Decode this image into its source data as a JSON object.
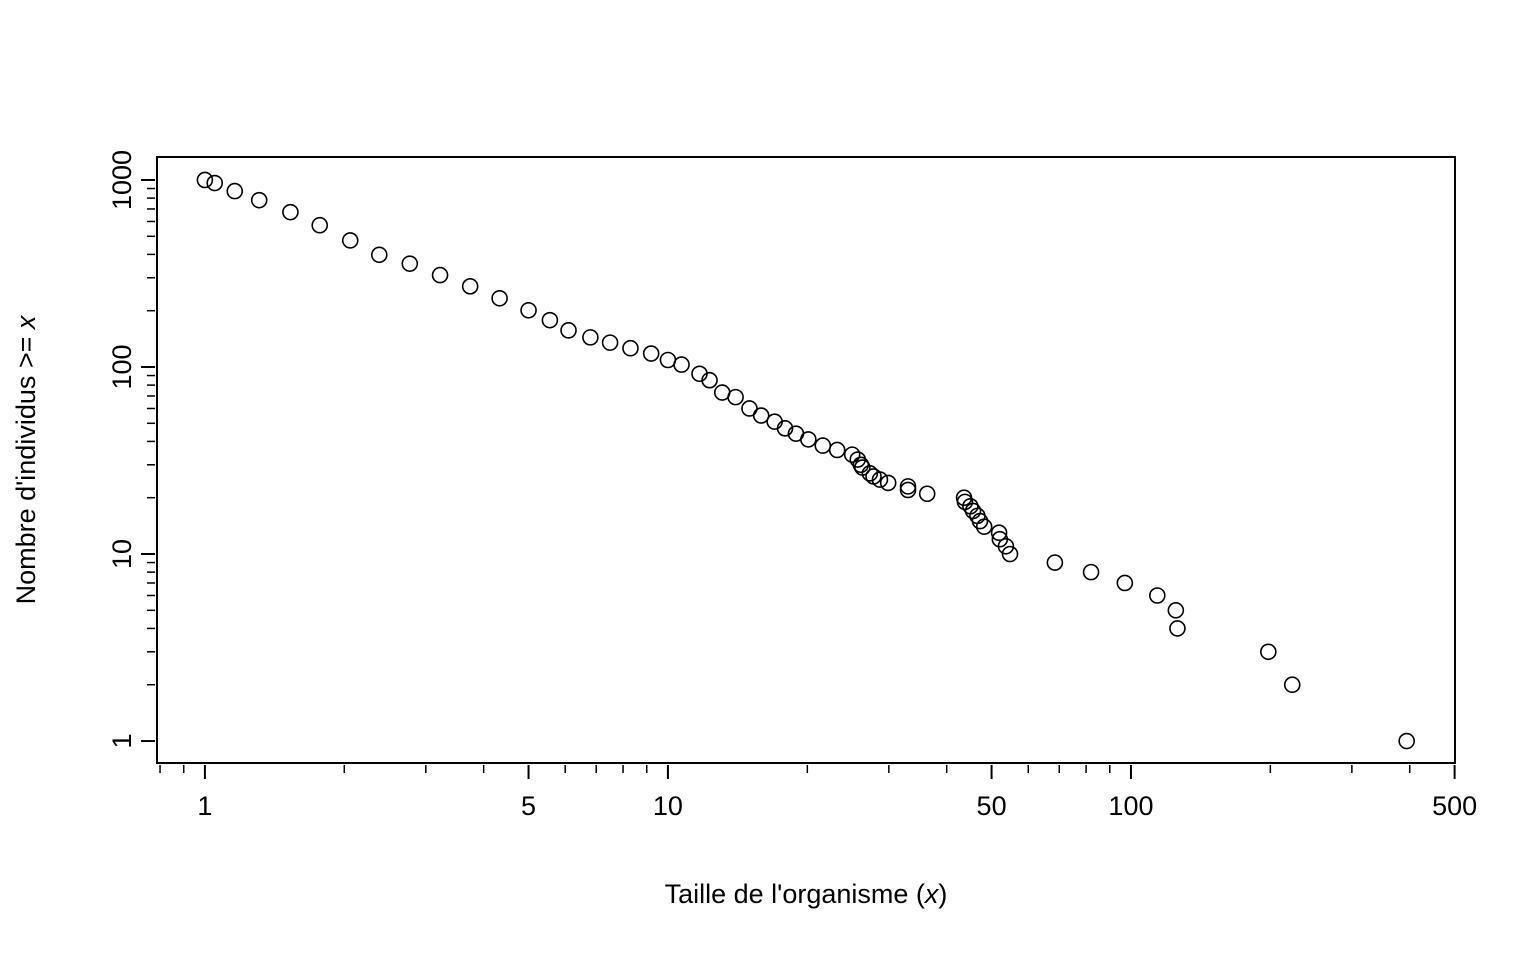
{
  "chart_data": {
    "type": "scatter",
    "xlabel": [
      "Taille de l'organisme (",
      "x",
      ")"
    ],
    "ylabel": [
      "Nombre d'individus >= ",
      "x"
    ],
    "log_x": true,
    "log_y": true,
    "color": "#000000",
    "xlim": [
      0.788,
      501
    ],
    "ylim": [
      0.763,
      1327
    ],
    "xticks": [
      1,
      5,
      10,
      50,
      100,
      500
    ],
    "xminor_ticks": [
      0.8,
      0.9,
      2,
      3,
      4,
      6,
      7,
      8,
      9,
      20,
      30,
      40,
      60,
      70,
      80,
      90,
      200,
      300,
      400
    ],
    "yticks": [
      1,
      10,
      100,
      1000
    ],
    "yminor_ticks": [
      2,
      3,
      4,
      5,
      6,
      7,
      8,
      9,
      20,
      30,
      40,
      50,
      60,
      70,
      80,
      90,
      200,
      300,
      400,
      500,
      600,
      700,
      800,
      900
    ],
    "series": [
      {
        "name": "individus",
        "x": [
          394,
          223,
          198,
          126,
          125,
          114,
          97,
          82,
          68.5,
          54.8,
          53.7,
          52.1,
          51.9,
          48.2,
          47.2,
          46.6,
          45.6,
          45.0,
          43.8,
          43.6,
          36.3,
          33.0,
          33.0,
          29.9,
          28.7,
          27.8,
          27.3,
          26.3,
          26.1,
          25.7,
          25.0,
          23.2,
          21.6,
          20.1,
          18.9,
          17.9,
          17.0,
          15.9,
          15.0,
          14.0,
          13.1,
          12.3,
          11.7,
          10.7,
          10,
          9.2,
          8.3,
          7.5,
          6.8,
          6.1,
          5.56,
          5.0,
          4.33,
          3.74,
          3.22,
          2.77,
          2.38,
          2.06,
          1.77,
          1.53,
          1.31,
          1.16,
          1.05,
          1
        ],
        "values": [
          1,
          2,
          3,
          4,
          5,
          6,
          7,
          8,
          9,
          10,
          11,
          12,
          13,
          14,
          15,
          16,
          17,
          18,
          19,
          20,
          21,
          22,
          23,
          24,
          25,
          26,
          27,
          29,
          30,
          32,
          34,
          36,
          38,
          41,
          44,
          47,
          51,
          55,
          60,
          69,
          73,
          85,
          92,
          103,
          109,
          118,
          126,
          135,
          144,
          157,
          178,
          201,
          233,
          270,
          310,
          357,
          398,
          475,
          573,
          673,
          780,
          872,
          963,
          1000
        ]
      }
    ]
  }
}
